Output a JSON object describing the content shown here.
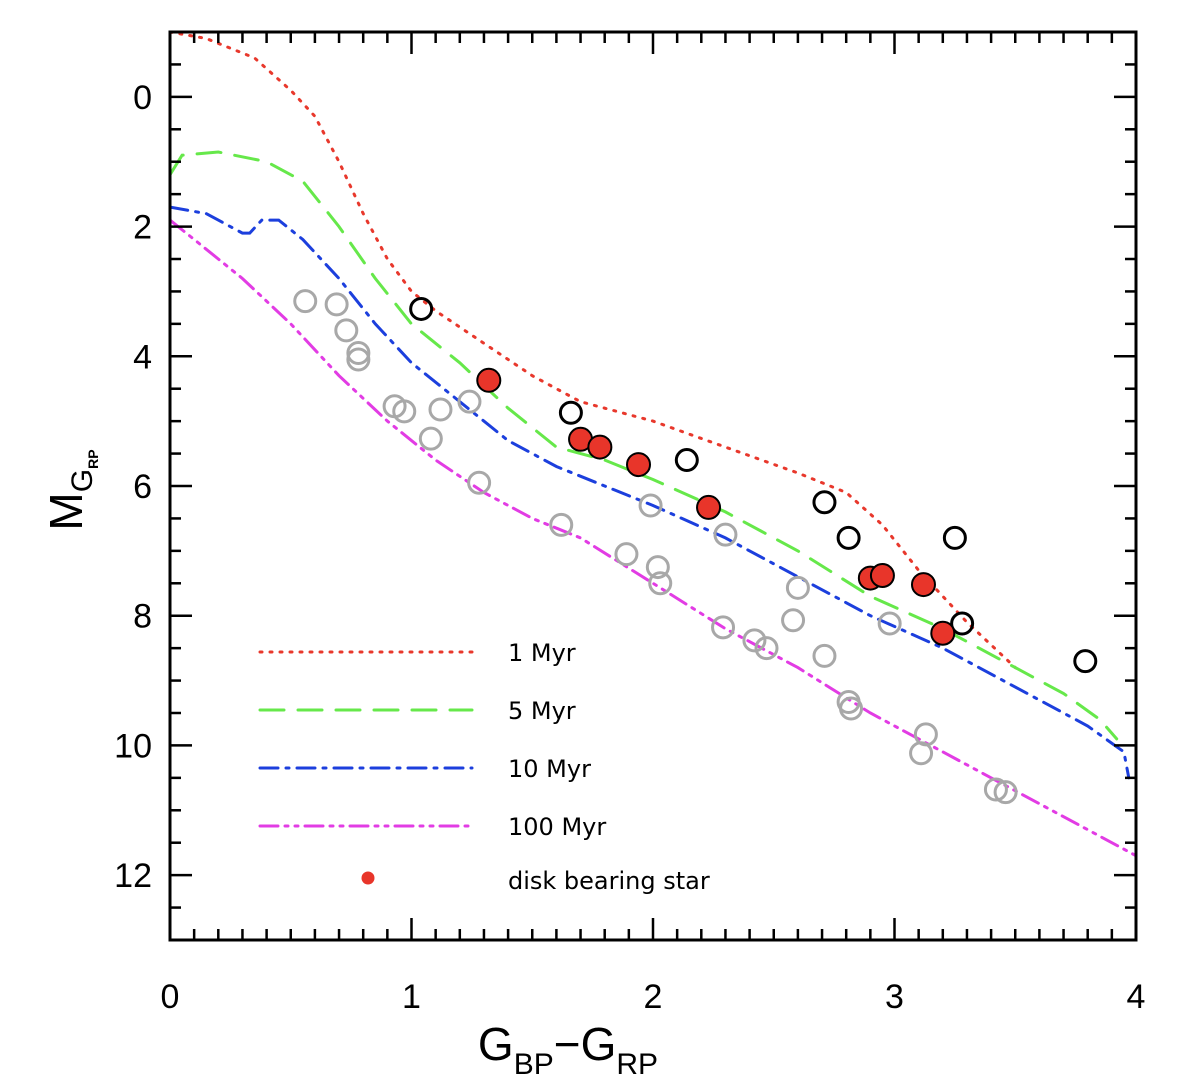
{
  "chart_data": {
    "type": "scatter",
    "title": "",
    "xlabel": {
      "main": "G",
      "sub1": "BP",
      "dash": "−",
      "main2": "G",
      "sub2": "RP"
    },
    "ylabel": {
      "main": "M",
      "sub": "G",
      "subsub": "RP"
    },
    "xlim": [
      0,
      4
    ],
    "ylim": [
      13,
      -1
    ],
    "y_inverted": true,
    "grid": false,
    "x_ticks": [
      "0",
      "1",
      "2",
      "3",
      "4"
    ],
    "y_ticks": [
      "0",
      "2",
      "4",
      "6",
      "8",
      "10",
      "12"
    ],
    "legend_position": "bottom-left",
    "isochrones": [
      {
        "name": "1 Myr",
        "color": "#e8382c",
        "dash": "dotted",
        "x": [
          0.0,
          0.15,
          0.35,
          0.5,
          0.6,
          0.7,
          0.8,
          0.9,
          1.0,
          1.1,
          1.3,
          1.5,
          1.7,
          2.0,
          2.3,
          2.6,
          2.8,
          2.95,
          3.1,
          3.3,
          3.5
        ],
        "y": [
          -1.0,
          -0.9,
          -0.6,
          -0.1,
          0.3,
          1.0,
          1.8,
          2.5,
          3.0,
          3.3,
          3.8,
          4.3,
          4.7,
          5.0,
          5.4,
          5.8,
          6.1,
          6.6,
          7.3,
          8.1,
          8.8
        ]
      },
      {
        "name": "5 Myr",
        "color": "#66e84a",
        "dash": "dashed",
        "x": [
          0.0,
          0.05,
          0.2,
          0.4,
          0.55,
          0.7,
          0.85,
          1.0,
          1.2,
          1.4,
          1.6,
          1.8,
          2.0,
          2.3,
          2.6,
          2.9,
          3.2,
          3.5,
          3.7,
          3.85,
          3.92
        ],
        "y": [
          1.2,
          0.9,
          0.85,
          1.0,
          1.3,
          2.0,
          2.8,
          3.5,
          4.1,
          4.8,
          5.4,
          5.6,
          5.9,
          6.4,
          7.0,
          7.7,
          8.2,
          8.8,
          9.2,
          9.6,
          9.9
        ]
      },
      {
        "name": "10 Myr",
        "color": "#1c3fdd",
        "dash": "dashdot",
        "x": [
          0.0,
          0.15,
          0.3,
          0.33,
          0.38,
          0.45,
          0.55,
          0.7,
          0.85,
          1.0,
          1.2,
          1.4,
          1.6,
          1.8,
          2.0,
          2.3,
          2.6,
          2.9,
          3.2,
          3.5,
          3.8,
          3.95,
          3.97
        ],
        "y": [
          1.7,
          1.8,
          2.1,
          2.1,
          1.9,
          1.9,
          2.2,
          2.8,
          3.5,
          4.1,
          4.7,
          5.3,
          5.7,
          6.0,
          6.3,
          6.8,
          7.4,
          8.0,
          8.5,
          9.1,
          9.7,
          10.1,
          10.5
        ]
      },
      {
        "name": "100 Myr",
        "color": "#e23ce4",
        "dash": "dashdotdot",
        "x": [
          0.0,
          0.1,
          0.3,
          0.5,
          0.7,
          0.9,
          1.1,
          1.3,
          1.5,
          1.7,
          2.0,
          2.3,
          2.6,
          2.9,
          3.2,
          3.5,
          3.8,
          4.0
        ],
        "y": [
          1.9,
          2.2,
          2.8,
          3.5,
          4.3,
          5.0,
          5.6,
          6.1,
          6.5,
          6.8,
          7.5,
          8.2,
          8.8,
          9.5,
          10.1,
          10.7,
          11.3,
          11.7
        ]
      }
    ],
    "disk_bearing_stars": {
      "name": "disk bearing star",
      "color": "#e8352a",
      "points": [
        [
          1.32,
          4.37
        ],
        [
          1.7,
          5.28
        ],
        [
          1.78,
          5.4
        ],
        [
          1.94,
          5.67
        ],
        [
          2.23,
          6.33
        ],
        [
          2.9,
          7.42
        ],
        [
          2.95,
          7.38
        ],
        [
          3.12,
          7.52
        ],
        [
          3.2,
          8.27
        ]
      ]
    },
    "open_black_stars": {
      "color": "#000000",
      "points": [
        [
          1.04,
          3.27
        ],
        [
          1.66,
          4.87
        ],
        [
          2.14,
          5.6
        ],
        [
          2.71,
          6.25
        ],
        [
          2.81,
          6.8
        ],
        [
          3.25,
          6.8
        ],
        [
          3.28,
          8.12
        ],
        [
          3.79,
          8.7
        ]
      ]
    },
    "open_gray_stars": {
      "color": "#a8a8a8",
      "points": [
        [
          0.56,
          3.15
        ],
        [
          0.69,
          3.2
        ],
        [
          0.73,
          3.6
        ],
        [
          0.78,
          3.95
        ],
        [
          0.78,
          4.05
        ],
        [
          0.93,
          4.77
        ],
        [
          0.97,
          4.85
        ],
        [
          1.08,
          5.27
        ],
        [
          1.12,
          4.82
        ],
        [
          1.24,
          4.7
        ],
        [
          1.28,
          5.95
        ],
        [
          1.62,
          6.6
        ],
        [
          1.89,
          7.05
        ],
        [
          1.99,
          6.3
        ],
        [
          2.02,
          7.25
        ],
        [
          2.03,
          7.5
        ],
        [
          2.29,
          8.18
        ],
        [
          2.3,
          6.75
        ],
        [
          2.42,
          8.38
        ],
        [
          2.47,
          8.5
        ],
        [
          2.58,
          8.07
        ],
        [
          2.6,
          7.57
        ],
        [
          2.71,
          8.62
        ],
        [
          2.81,
          9.33
        ],
        [
          2.82,
          9.43
        ],
        [
          2.98,
          8.12
        ],
        [
          3.11,
          10.12
        ],
        [
          3.13,
          9.83
        ],
        [
          3.42,
          10.68
        ],
        [
          3.46,
          10.72
        ]
      ]
    }
  }
}
